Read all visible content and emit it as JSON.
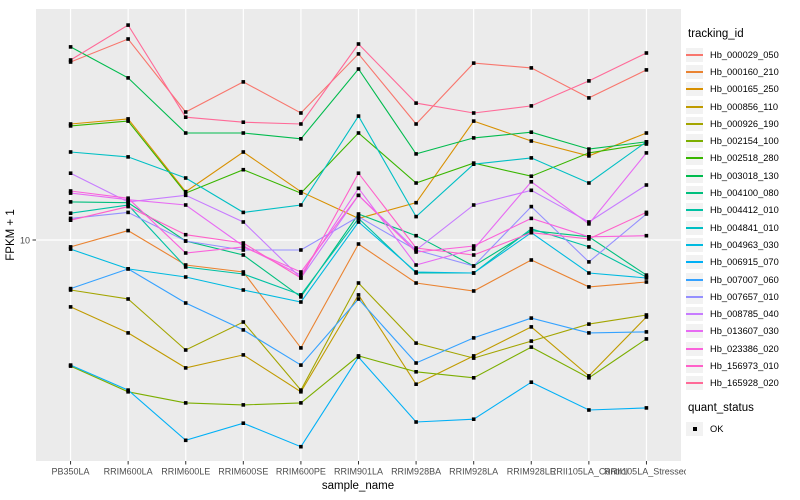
{
  "figure": {
    "background": "#FFFFFF",
    "panel_bg": "#EBEBEB",
    "grid_color": "#FFFFFF",
    "axis_text_color": "#4D4D4D",
    "title_color": "#000000",
    "point_color": "#000000"
  },
  "axes": {
    "x_title": "sample_name",
    "y_title": "FPKM + 1",
    "y_tick_label": "10"
  },
  "legend": {
    "tracking_title": "tracking_id",
    "quant_title": "quant_status",
    "quant_label": "OK"
  },
  "chart_data": {
    "type": "line",
    "title": "",
    "xlabel": "sample_name",
    "ylabel": "FPKM + 1",
    "y_scale": "log10",
    "y_breaks": [
      10
    ],
    "ylim": [
      1.31,
      83
    ],
    "grid": "major-white-on-gray",
    "legend_position": "right",
    "marker": "black-square",
    "quant_status_legend": {
      "title": "quant_status",
      "items": [
        "OK"
      ]
    },
    "categories": [
      "PB350LA",
      "RRIM600LA",
      "RRIM600LE",
      "RRIM600SE",
      "RRIM600PE",
      "RRIM901LA",
      "RRIM928BA",
      "RRIM928LA",
      "RRIM928LE",
      "RRII105LA_Control",
      "RRII105LA_Stressed"
    ],
    "series": [
      {
        "name": "Hb_000029_050",
        "color": "#F8766D",
        "values": [
          51.5,
          63.7,
          32.5,
          42.9,
          32.2,
          55.5,
          29.1,
          51.0,
          48.8,
          37.0,
          47.9
        ]
      },
      {
        "name": "Hb_000160_210",
        "color": "#EA8331",
        "values": [
          9.38,
          10.9,
          7.94,
          7.45,
          3.7,
          9.64,
          6.73,
          6.25,
          8.32,
          6.49,
          6.79
        ]
      },
      {
        "name": "Hb_000165_250",
        "color": "#D89000",
        "values": [
          29.1,
          30.5,
          15.6,
          22.5,
          15.6,
          12.2,
          14.1,
          29.9,
          24.9,
          21.7,
          26.8
        ]
      },
      {
        "name": "Hb_000856_110",
        "color": "#C09B00",
        "values": [
          5.4,
          4.25,
          3.08,
          3.47,
          2.47,
          6.03,
          2.65,
          3.44,
          4.49,
          2.86,
          4.92
        ]
      },
      {
        "name": "Hb_000926_190",
        "color": "#A3A500",
        "values": [
          6.31,
          5.81,
          3.63,
          4.7,
          2.51,
          6.73,
          3.87,
          3.37,
          3.94,
          4.61,
          5.01
        ]
      },
      {
        "name": "Hb_002154_100",
        "color": "#7CAE00",
        "values": [
          3.13,
          2.47,
          2.23,
          2.19,
          2.23,
          3.44,
          2.97,
          2.81,
          3.73,
          2.81,
          4.02
        ]
      },
      {
        "name": "Hb_002518_280",
        "color": "#39B600",
        "values": [
          28.6,
          29.9,
          15.4,
          19.1,
          15.4,
          26.8,
          16.9,
          20.3,
          18.0,
          22.3,
          24.2
        ]
      },
      {
        "name": "Hb_003018_130",
        "color": "#00BB4E",
        "values": [
          59.2,
          44.5,
          26.8,
          26.8,
          25.4,
          48.3,
          22.1,
          25.6,
          27.0,
          23.1,
          24.7
        ]
      },
      {
        "name": "Hb_004100_080",
        "color": "#00BF7D",
        "values": [
          14.2,
          14.1,
          9.91,
          8.71,
          5.92,
          12.7,
          10.4,
          7.87,
          10.9,
          10.3,
          7.24
        ]
      },
      {
        "name": "Hb_004412_010",
        "color": "#00C1A3",
        "values": [
          12.8,
          13.8,
          7.8,
          7.31,
          6.03,
          12.2,
          7.38,
          7.38,
          11.1,
          9.38,
          7.11
        ]
      },
      {
        "name": "Hb_004841_010",
        "color": "#00BFC4",
        "values": [
          22.5,
          21.5,
          17.7,
          12.9,
          13.8,
          31.3,
          12.4,
          20.1,
          21.3,
          16.9,
          24.7
        ]
      },
      {
        "name": "Hb_004963_030",
        "color": "#00BAE0",
        "values": [
          9.2,
          7.66,
          7.11,
          6.31,
          5.65,
          11.8,
          7.45,
          7.38,
          10.7,
          7.38,
          7.05
        ]
      },
      {
        "name": "Hb_006915_070",
        "color": "#00B0F6",
        "values": [
          3.16,
          2.51,
          1.58,
          1.85,
          1.49,
          3.4,
          1.87,
          1.92,
          2.7,
          2.09,
          2.13
        ]
      },
      {
        "name": "Hb_007007_060",
        "color": "#35A2FF",
        "values": [
          6.39,
          7.66,
          5.6,
          4.37,
          3.16,
          5.81,
          3.22,
          4.06,
          4.87,
          4.25,
          4.29
        ]
      },
      {
        "name": "Hb_007657_010",
        "color": "#9590FF",
        "values": [
          12.2,
          12.9,
          9.91,
          9.12,
          9.12,
          12.4,
          9.12,
          7.87,
          13.6,
          8.17,
          12.7
        ]
      },
      {
        "name": "Hb_008785_040",
        "color": "#C77CFF",
        "values": [
          18.5,
          14.2,
          15.1,
          11.8,
          7.05,
          15.1,
          9.12,
          13.8,
          15.8,
          11.8,
          16.6
        ]
      },
      {
        "name": "Hb_013607_030",
        "color": "#E76BF3",
        "values": [
          15.4,
          14.5,
          13.8,
          9.46,
          7.24,
          16.1,
          7.94,
          9.2,
          17.1,
          11.6,
          22.3
        ]
      },
      {
        "name": "Hb_023386_020",
        "color": "#FA62DB",
        "values": [
          15.7,
          14.7,
          8.87,
          9.38,
          7.45,
          15.1,
          8.95,
          9.46,
          12.2,
          10.3,
          10.4
        ]
      },
      {
        "name": "Hb_156973_010",
        "color": "#FF61C9",
        "values": [
          12.0,
          13.6,
          10.5,
          9.73,
          7.05,
          18.5,
          9.29,
          8.71,
          10.7,
          10.1,
          12.9
        ]
      },
      {
        "name": "Hb_165928_020",
        "color": "#FF6A98",
        "values": [
          52.5,
          72.4,
          31.0,
          29.6,
          29.1,
          60.8,
          35.3,
          32.2,
          34.4,
          43.3,
          56.0
        ]
      }
    ]
  }
}
